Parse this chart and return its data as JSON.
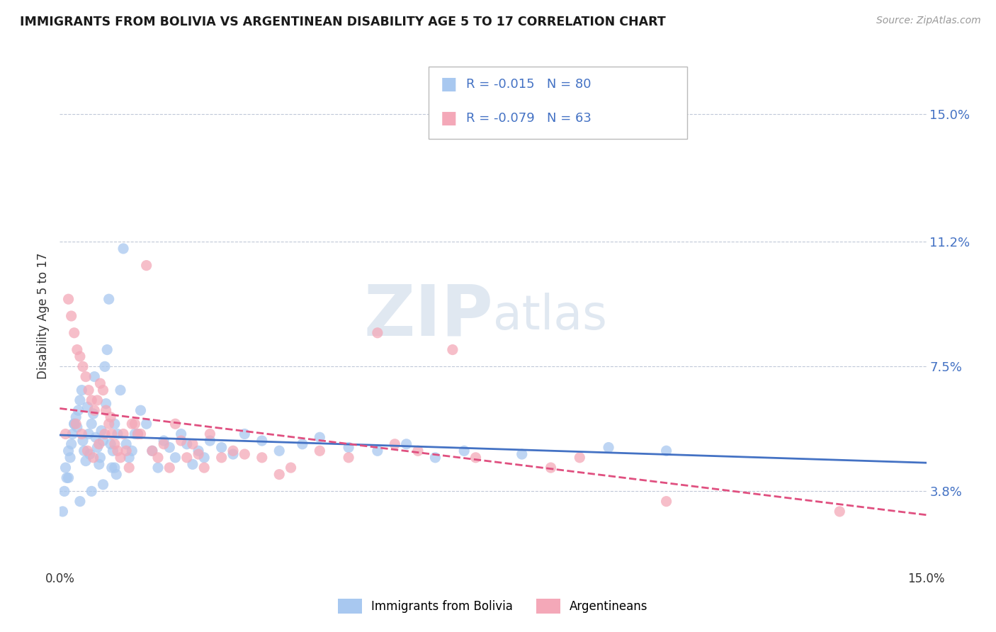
{
  "title": "IMMIGRANTS FROM BOLIVIA VS ARGENTINEAN DISABILITY AGE 5 TO 17 CORRELATION CHART",
  "source": "Source: ZipAtlas.com",
  "ylabel": "Disability Age 5 to 17",
  "ytick_labels": [
    "3.8%",
    "7.5%",
    "11.2%",
    "15.0%"
  ],
  "ytick_values": [
    3.8,
    7.5,
    11.2,
    15.0
  ],
  "xlim": [
    0.0,
    15.0
  ],
  "ylim": [
    1.5,
    16.5
  ],
  "series1_label": "Immigrants from Bolivia",
  "series1_R": "-0.015",
  "series1_N": "80",
  "series1_color": "#a8c8f0",
  "series1_line_color": "#4472c4",
  "series2_label": "Argentineans",
  "series2_R": "-0.079",
  "series2_N": "63",
  "series2_color": "#f4a8b8",
  "series2_line_color": "#e05080",
  "bolivia_x": [
    0.05,
    0.08,
    0.1,
    0.12,
    0.15,
    0.18,
    0.2,
    0.22,
    0.25,
    0.28,
    0.3,
    0.32,
    0.35,
    0.38,
    0.4,
    0.42,
    0.45,
    0.48,
    0.5,
    0.52,
    0.55,
    0.58,
    0.6,
    0.62,
    0.65,
    0.68,
    0.7,
    0.72,
    0.75,
    0.78,
    0.8,
    0.82,
    0.85,
    0.88,
    0.9,
    0.92,
    0.95,
    0.98,
    1.0,
    1.05,
    1.1,
    1.15,
    1.2,
    1.25,
    1.3,
    1.4,
    1.5,
    1.6,
    1.7,
    1.8,
    1.9,
    2.0,
    2.1,
    2.2,
    2.3,
    2.4,
    2.5,
    2.6,
    2.8,
    3.0,
    3.2,
    3.5,
    3.8,
    4.2,
    4.5,
    5.0,
    5.5,
    6.0,
    6.5,
    7.0,
    8.0,
    9.5,
    10.5,
    0.15,
    0.25,
    0.35,
    0.55,
    0.75,
    0.95,
    1.35
  ],
  "bolivia_y": [
    3.2,
    3.8,
    4.5,
    4.2,
    5.0,
    4.8,
    5.2,
    5.5,
    5.8,
    6.0,
    5.7,
    6.2,
    6.5,
    6.8,
    5.3,
    5.0,
    4.7,
    6.3,
    5.5,
    4.9,
    5.8,
    6.1,
    7.2,
    5.4,
    5.1,
    4.6,
    4.8,
    5.6,
    5.3,
    7.5,
    6.4,
    8.0,
    9.5,
    5.2,
    4.5,
    5.0,
    5.8,
    4.3,
    5.5,
    6.8,
    11.0,
    5.2,
    4.8,
    5.0,
    5.5,
    6.2,
    5.8,
    5.0,
    4.5,
    5.3,
    5.1,
    4.8,
    5.5,
    5.2,
    4.6,
    5.0,
    4.8,
    5.3,
    5.1,
    4.9,
    5.5,
    5.3,
    5.0,
    5.2,
    5.4,
    5.1,
    5.0,
    5.2,
    4.8,
    5.0,
    4.9,
    5.1,
    5.0,
    4.2,
    5.8,
    3.5,
    3.8,
    4.0,
    4.5,
    5.5
  ],
  "argentina_x": [
    0.1,
    0.15,
    0.2,
    0.25,
    0.3,
    0.35,
    0.4,
    0.45,
    0.5,
    0.55,
    0.6,
    0.65,
    0.7,
    0.75,
    0.8,
    0.85,
    0.9,
    0.95,
    1.0,
    1.05,
    1.1,
    1.15,
    1.2,
    1.3,
    1.4,
    1.5,
    1.6,
    1.7,
    1.8,
    1.9,
    2.0,
    2.1,
    2.2,
    2.3,
    2.4,
    2.5,
    2.6,
    2.8,
    3.0,
    3.2,
    3.5,
    3.8,
    4.0,
    4.5,
    5.0,
    5.5,
    5.8,
    6.2,
    6.8,
    7.2,
    8.5,
    9.0,
    10.5,
    13.5,
    0.28,
    0.38,
    0.48,
    0.58,
    0.68,
    0.78,
    0.88,
    1.25,
    1.35
  ],
  "argentina_y": [
    5.5,
    9.5,
    9.0,
    8.5,
    8.0,
    7.8,
    7.5,
    7.2,
    6.8,
    6.5,
    6.2,
    6.5,
    7.0,
    6.8,
    6.2,
    5.8,
    5.5,
    5.2,
    5.0,
    4.8,
    5.5,
    5.0,
    4.5,
    5.8,
    5.5,
    10.5,
    5.0,
    4.8,
    5.2,
    4.5,
    5.8,
    5.3,
    4.8,
    5.2,
    4.9,
    4.5,
    5.5,
    4.8,
    5.0,
    4.9,
    4.8,
    4.3,
    4.5,
    5.0,
    4.8,
    8.5,
    5.2,
    5.0,
    8.0,
    4.8,
    4.5,
    4.8,
    3.5,
    3.2,
    5.8,
    5.5,
    5.0,
    4.8,
    5.2,
    5.5,
    6.0,
    5.8,
    5.5
  ]
}
